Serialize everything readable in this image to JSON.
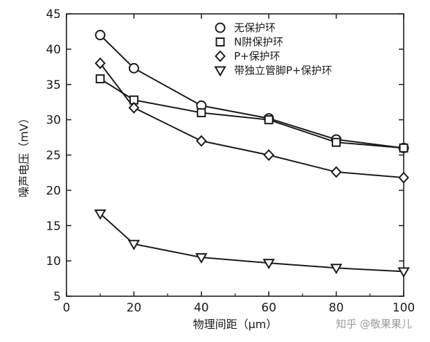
{
  "chart_data": {
    "type": "line",
    "title": "",
    "xlabel": "物理间距（μm）",
    "ylabel": "噪声电压（mV）",
    "xlim": [
      0,
      100
    ],
    "ylim": [
      5,
      45
    ],
    "xticks": [
      0,
      20,
      40,
      60,
      80,
      100
    ],
    "yticks": [
      5,
      10,
      15,
      20,
      25,
      30,
      35,
      40,
      45
    ],
    "grid": false,
    "legend_position": "top-right",
    "series": [
      {
        "name": "无保护环",
        "marker": "circle",
        "points": [
          [
            10,
            42
          ],
          [
            20,
            37.3
          ],
          [
            40,
            32
          ],
          [
            60,
            30.2
          ],
          [
            80,
            27.2
          ],
          [
            100,
            26
          ]
        ]
      },
      {
        "name": "N阱保护环",
        "marker": "square",
        "points": [
          [
            10,
            35.8
          ],
          [
            20,
            32.8
          ],
          [
            40,
            31
          ],
          [
            60,
            30
          ],
          [
            80,
            26.8
          ],
          [
            100,
            26
          ]
        ]
      },
      {
        "name": "P+保护环",
        "marker": "diamond",
        "points": [
          [
            10,
            38
          ],
          [
            20,
            31.7
          ],
          [
            40,
            27
          ],
          [
            60,
            25
          ],
          [
            80,
            22.6
          ],
          [
            100,
            21.8
          ]
        ]
      },
      {
        "name": "带独立管脚P+保护环",
        "marker": "triangle-down",
        "points": [
          [
            10,
            16.7
          ],
          [
            20,
            12.4
          ],
          [
            40,
            10.5
          ],
          [
            60,
            9.7
          ],
          [
            80,
            9
          ],
          [
            100,
            8.5
          ]
        ]
      }
    ]
  },
  "watermark": "知乎 @敬果果儿",
  "colors": {
    "ink": "#1a1a1a",
    "background": "#ffffff",
    "watermark": "#9a9a9a"
  }
}
